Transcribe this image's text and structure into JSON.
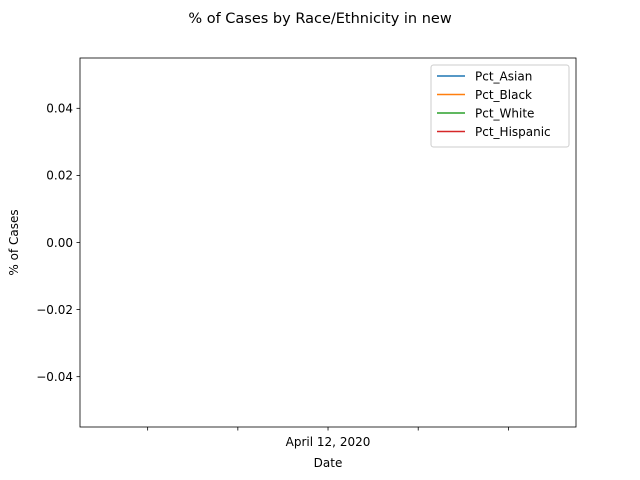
{
  "chart_data": {
    "type": "line",
    "title": "% of Cases by Race/Ethnicity in new",
    "xlabel": "Date",
    "ylabel": "% of Cases",
    "ylim": [
      -0.055,
      0.055
    ],
    "y_ticks": [
      {
        "value": 0.04,
        "label": "0.04"
      },
      {
        "value": 0.02,
        "label": "0.02"
      },
      {
        "value": 0.0,
        "label": "0.00"
      },
      {
        "value": -0.02,
        "label": "−0.02"
      },
      {
        "value": -0.04,
        "label": "−0.04"
      }
    ],
    "x_ticks": [
      {
        "label": ""
      },
      {
        "label": ""
      },
      {
        "label": "April 12, 2020"
      },
      {
        "label": ""
      },
      {
        "label": ""
      }
    ],
    "legend_position": "top-right",
    "grid": false,
    "series": [
      {
        "name": "Pct_Asian",
        "color": "#1f77b4",
        "x": [],
        "values": []
      },
      {
        "name": "Pct_Black",
        "color": "#ff7f0e",
        "x": [],
        "values": []
      },
      {
        "name": "Pct_White",
        "color": "#2ca02c",
        "x": [],
        "values": []
      },
      {
        "name": "Pct_Hispanic",
        "color": "#d62728",
        "x": [],
        "values": []
      }
    ]
  }
}
